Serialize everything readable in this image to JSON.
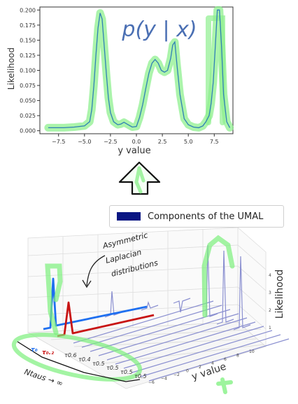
{
  "top_chart": {
    "ylabel": "Likelihood",
    "xlabel": "y value",
    "formula": "p(y | x)",
    "y_ticks": [
      "0.000",
      "0.025",
      "0.050",
      "0.075",
      "0.100",
      "0.125",
      "0.150",
      "0.175",
      "0.200"
    ],
    "x_ticks": [
      "−7.5",
      "−5.0",
      "−2.5",
      "0.0",
      "2.5",
      "5.0",
      "7.5"
    ],
    "colors": {
      "line": "#2f7fb5",
      "highlight": "#8ff08f"
    }
  },
  "chart_data": {
    "type": "line",
    "xlabel": "y value",
    "ylabel": "Likelihood",
    "xlim": [
      -9.3,
      9.3
    ],
    "ylim": [
      -0.005,
      0.205
    ],
    "series": [
      {
        "x": [
          -8.5,
          -7,
          -6,
          -5,
          -4.5,
          -4.3,
          -4.1,
          -3.9,
          -3.7,
          -3.5,
          -3.3,
          -3.1,
          -2.9,
          -2.7,
          -2.5,
          -2.2,
          -1.8,
          -1.5,
          -1.2,
          -0.8,
          -0.4,
          0,
          0.3,
          0.6,
          0.9,
          1.2,
          1.5,
          1.8,
          2.1,
          2.4,
          2.7,
          3,
          3.3,
          3.5,
          3.7,
          3.9,
          4.2,
          4.6,
          5,
          5.5,
          6,
          6.4,
          6.7,
          7,
          7.2,
          7.4,
          7.6,
          7.8,
          8,
          8.2,
          8.4,
          8.7,
          9
        ],
        "values": [
          0.005,
          0.005,
          0.006,
          0.008,
          0.015,
          0.035,
          0.075,
          0.125,
          0.17,
          0.195,
          0.185,
          0.14,
          0.095,
          0.055,
          0.03,
          0.015,
          0.01,
          0.011,
          0.014,
          0.01,
          0.006,
          0.007,
          0.022,
          0.043,
          0.07,
          0.095,
          0.112,
          0.118,
          0.112,
          0.1,
          0.097,
          0.1,
          0.12,
          0.142,
          0.147,
          0.11,
          0.06,
          0.02,
          0.01,
          0.006,
          0.005,
          0.008,
          0.015,
          0.025,
          0.045,
          0.08,
          0.14,
          0.2,
          0.2,
          0.14,
          0.06,
          0.015,
          0.005
        ]
      }
    ]
  },
  "legend": {
    "label": "Components of the UMAL",
    "color": "#0a1683"
  },
  "bottom_plot": {
    "zlabel": "Likelihood",
    "ylabel": "y value",
    "z_ticks": [
      "1",
      "2",
      "3",
      "4"
    ],
    "y_ticks": [
      "−6",
      "−4",
      "−2",
      "0",
      "2",
      "4",
      "6",
      "8",
      "10"
    ],
    "tau_labels": [
      "τ0.6",
      "τ0.4",
      "τ0.5",
      "τ0.5",
      "τ0.5",
      "τ0.5"
    ],
    "annotations": {
      "asym_line1": "Asymmetric",
      "asym_line2": "Laplacian",
      "asym_line3": "distributions",
      "tau_blue": "τ₀",
      "tau_red": "τ₀.₂",
      "ntaus": "Ntaus → ∞"
    },
    "colors": {
      "component": "#8a8fd0",
      "blue": "#1e6ff0",
      "red": "#c81414",
      "green": "#7cf07c"
    }
  }
}
